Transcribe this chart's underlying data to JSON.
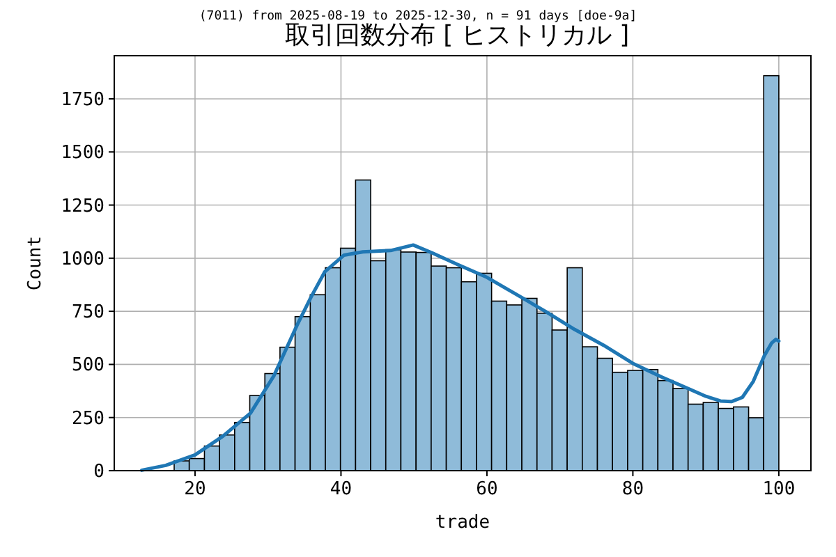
{
  "chart_data": {
    "type": "histogram",
    "title": "取引回数分布 [ ヒストリカル ]",
    "subtitle": "(7011) from 2025-08-19 to 2025-12-30, n = 91 days [doe-9a]",
    "xlabel": "trade",
    "ylabel": "Count",
    "bins": [
      17.14,
      19.21,
      21.29,
      23.36,
      25.43,
      27.5,
      29.57,
      31.64,
      33.71,
      35.79,
      37.86,
      39.93,
      42,
      44.07,
      46.14,
      48.21,
      50.29,
      52.36,
      54.43,
      56.5,
      58.57,
      60.64,
      62.71,
      64.79,
      66.86,
      68.93,
      71,
      73.07,
      75.14,
      77.21,
      79.29,
      81.36,
      83.43,
      85.5,
      87.57,
      89.64,
      91.71,
      93.79,
      95.86,
      97.93,
      100
    ],
    "values": [
      46,
      57,
      116,
      168,
      227,
      354,
      457,
      581,
      725,
      828,
      955,
      1047,
      1368,
      988,
      1040,
      1029,
      1027,
      963,
      955,
      889,
      929,
      798,
      780,
      811,
      741,
      662,
      955,
      583,
      529,
      463,
      472,
      476,
      424,
      387,
      313,
      321,
      293,
      300,
      249,
      1859
    ],
    "color": "#8fbbd9",
    "series": [
      {
        "type": "line",
        "color": "#1f77b4",
        "x": [
          12.7,
          16,
          20,
          23.8,
          27.6,
          30.8,
          34,
          35.9,
          37.8,
          40.4,
          43,
          46.8,
          49.9,
          52.5,
          56,
          60,
          64,
          68,
          72,
          76,
          80,
          84,
          88,
          90,
          92,
          93.5,
          95,
          96.5,
          98,
          99,
          99.6,
          100
        ],
        "values": [
          2,
          25,
          74,
          162,
          271,
          446,
          686,
          817,
          937,
          1014,
          1030,
          1036,
          1062,
          1025,
          970,
          910,
          830,
          750,
          665,
          590,
          505,
          440,
          380,
          350,
          328,
          325,
          345,
          420,
          540,
          600,
          618,
          610
        ]
      }
    ],
    "xlim": [
      8.93,
      104.4
    ],
    "ylim": [
      0,
      1953
    ],
    "xticks": [
      20,
      40,
      60,
      80,
      100
    ],
    "yticks": [
      0,
      250,
      500,
      750,
      1000,
      1250,
      1500,
      1750
    ],
    "grid": true
  }
}
